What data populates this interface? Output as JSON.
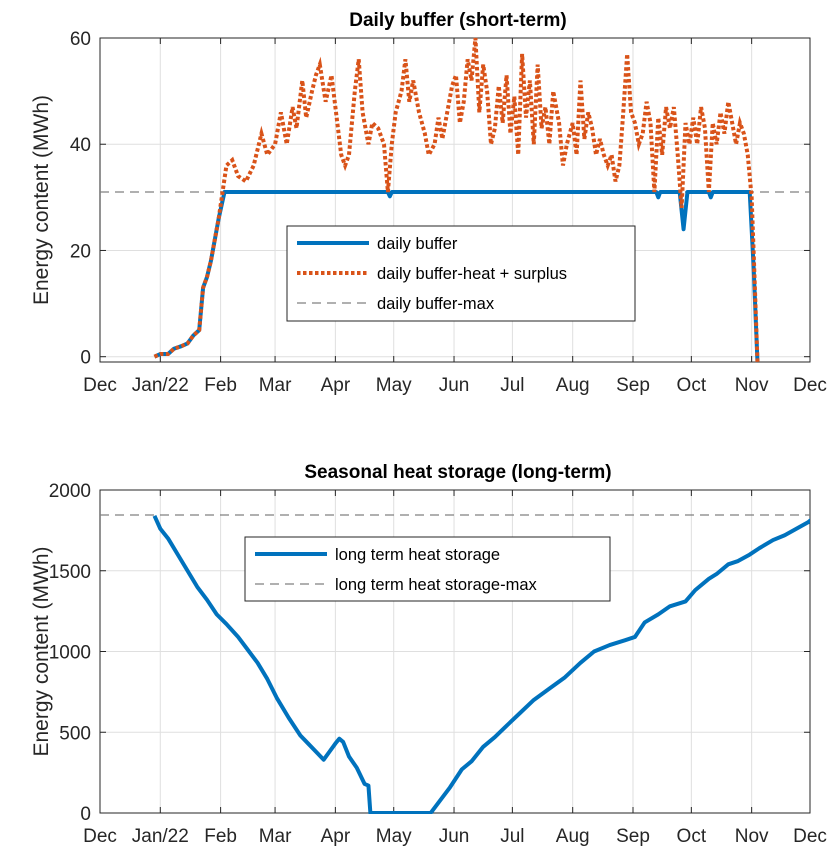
{
  "chart_data": [
    {
      "type": "line",
      "title": "Daily buffer (short-term)",
      "xlabel": "",
      "ylabel": "Energy content (MWh)",
      "x_tick_labels": [
        "Dec",
        "Jan/22",
        "Feb",
        "Mar",
        "Apr",
        "May",
        "Jun",
        "Jul",
        "Aug",
        "Sep",
        "Oct",
        "Nov",
        "Dec"
      ],
      "y_ticks": [
        0,
        20,
        40,
        60
      ],
      "ylim": [
        -1,
        60
      ],
      "grid": true,
      "legend": "center",
      "series": [
        {
          "name": "daily buffer",
          "color": "#0072BD",
          "style": "solid",
          "points": [
            [
              "2021-12-29",
              0
            ],
            [
              "2022-01-01",
              0.5
            ],
            [
              "2022-01-05",
              0.5
            ],
            [
              "2022-01-08",
              1.5
            ],
            [
              "2022-01-12",
              2
            ],
            [
              "2022-01-15",
              2.5
            ],
            [
              "2022-01-18",
              4
            ],
            [
              "2022-01-21",
              5
            ],
            [
              "2022-01-23",
              13
            ],
            [
              "2022-01-25",
              15
            ],
            [
              "2022-01-27",
              18
            ],
            [
              "2022-01-29",
              22
            ],
            [
              "2022-01-31",
              26
            ],
            [
              "2022-02-03",
              31
            ],
            [
              "2022-04-28",
              31
            ],
            [
              "2022-04-29",
              30.2
            ],
            [
              "2022-04-30",
              31
            ],
            [
              "2022-09-13",
              31
            ],
            [
              "2022-09-14",
              30
            ],
            [
              "2022-09-15",
              31
            ],
            [
              "2022-09-25",
              31
            ],
            [
              "2022-09-27",
              24
            ],
            [
              "2022-09-29",
              31
            ],
            [
              "2022-10-10",
              31
            ],
            [
              "2022-10-11",
              30
            ],
            [
              "2022-10-12",
              31
            ],
            [
              "2022-10-31",
              31
            ],
            [
              "2022-11-02",
              17
            ],
            [
              "2022-11-04",
              -1
            ]
          ]
        },
        {
          "name": "daily buffer-heat + surplus",
          "color": "#D95319",
          "style": "dotted",
          "points": [
            [
              "2021-12-29",
              0
            ],
            [
              "2022-01-01",
              0.5
            ],
            [
              "2022-01-05",
              0.5
            ],
            [
              "2022-01-08",
              1.5
            ],
            [
              "2022-01-12",
              2
            ],
            [
              "2022-01-15",
              2.5
            ],
            [
              "2022-01-18",
              4
            ],
            [
              "2022-01-21",
              5
            ],
            [
              "2022-01-23",
              13
            ],
            [
              "2022-01-25",
              15
            ],
            [
              "2022-01-27",
              18
            ],
            [
              "2022-01-29",
              22
            ],
            [
              "2022-01-31",
              26
            ],
            [
              "2022-02-02",
              31
            ],
            [
              "2022-02-04",
              36
            ],
            [
              "2022-02-07",
              37
            ],
            [
              "2022-02-10",
              34
            ],
            [
              "2022-02-14",
              33
            ],
            [
              "2022-02-18",
              36
            ],
            [
              "2022-02-22",
              42
            ],
            [
              "2022-02-25",
              38
            ],
            [
              "2022-03-01",
              40
            ],
            [
              "2022-03-04",
              46
            ],
            [
              "2022-03-07",
              40
            ],
            [
              "2022-03-10",
              47
            ],
            [
              "2022-03-12",
              43
            ],
            [
              "2022-03-15",
              52
            ],
            [
              "2022-03-17",
              45
            ],
            [
              "2022-03-20",
              50
            ],
            [
              "2022-03-22",
              53
            ],
            [
              "2022-03-24",
              55
            ],
            [
              "2022-03-27",
              48
            ],
            [
              "2022-03-30",
              53
            ],
            [
              "2022-04-02",
              44
            ],
            [
              "2022-04-04",
              38
            ],
            [
              "2022-04-06",
              36
            ],
            [
              "2022-04-08",
              38
            ],
            [
              "2022-04-11",
              50
            ],
            [
              "2022-04-13",
              56
            ],
            [
              "2022-04-15",
              46
            ],
            [
              "2022-04-18",
              40
            ],
            [
              "2022-04-20",
              44
            ],
            [
              "2022-04-23",
              43
            ],
            [
              "2022-04-26",
              40
            ],
            [
              "2022-04-28",
              31
            ],
            [
              "2022-04-30",
              40
            ],
            [
              "2022-05-02",
              46
            ],
            [
              "2022-05-05",
              50
            ],
            [
              "2022-05-07",
              56
            ],
            [
              "2022-05-09",
              48
            ],
            [
              "2022-05-11",
              52
            ],
            [
              "2022-05-14",
              46
            ],
            [
              "2022-05-17",
              42
            ],
            [
              "2022-05-19",
              38
            ],
            [
              "2022-05-22",
              40
            ],
            [
              "2022-05-24",
              45
            ],
            [
              "2022-05-26",
              41
            ],
            [
              "2022-05-29",
              47
            ],
            [
              "2022-05-31",
              51
            ],
            [
              "2022-06-02",
              53
            ],
            [
              "2022-06-04",
              44
            ],
            [
              "2022-06-06",
              48
            ],
            [
              "2022-06-08",
              56
            ],
            [
              "2022-06-10",
              52
            ],
            [
              "2022-06-12",
              60
            ],
            [
              "2022-06-14",
              46
            ],
            [
              "2022-06-16",
              55
            ],
            [
              "2022-06-18",
              50
            ],
            [
              "2022-06-20",
              40
            ],
            [
              "2022-06-22",
              43
            ],
            [
              "2022-06-24",
              51
            ],
            [
              "2022-06-26",
              44
            ],
            [
              "2022-06-28",
              53
            ],
            [
              "2022-06-30",
              42
            ],
            [
              "2022-07-02",
              49
            ],
            [
              "2022-07-04",
              38
            ],
            [
              "2022-07-06",
              57
            ],
            [
              "2022-07-08",
              45
            ],
            [
              "2022-07-10",
              52
            ],
            [
              "2022-07-12",
              40
            ],
            [
              "2022-07-14",
              55
            ],
            [
              "2022-07-16",
              43
            ],
            [
              "2022-07-18",
              47
            ],
            [
              "2022-07-20",
              40
            ],
            [
              "2022-07-22",
              50
            ],
            [
              "2022-07-25",
              44
            ],
            [
              "2022-07-27",
              36
            ],
            [
              "2022-07-29",
              40
            ],
            [
              "2022-08-01",
              44
            ],
            [
              "2022-08-03",
              38
            ],
            [
              "2022-08-05",
              52
            ],
            [
              "2022-08-07",
              41
            ],
            [
              "2022-08-09",
              46
            ],
            [
              "2022-08-11",
              43
            ],
            [
              "2022-08-13",
              38
            ],
            [
              "2022-08-15",
              41
            ],
            [
              "2022-08-17",
              38
            ],
            [
              "2022-08-19",
              36
            ],
            [
              "2022-08-21",
              38
            ],
            [
              "2022-08-23",
              33
            ],
            [
              "2022-08-25",
              36
            ],
            [
              "2022-08-27",
              46
            ],
            [
              "2022-08-29",
              57
            ],
            [
              "2022-08-31",
              46
            ],
            [
              "2022-09-02",
              44
            ],
            [
              "2022-09-04",
              40
            ],
            [
              "2022-09-06",
              42
            ],
            [
              "2022-09-08",
              48
            ],
            [
              "2022-09-10",
              44
            ],
            [
              "2022-09-12",
              31
            ],
            [
              "2022-09-14",
              45
            ],
            [
              "2022-09-16",
              38
            ],
            [
              "2022-09-18",
              47
            ],
            [
              "2022-09-20",
              43
            ],
            [
              "2022-09-22",
              47
            ],
            [
              "2022-09-24",
              38
            ],
            [
              "2022-09-26",
              28
            ],
            [
              "2022-09-28",
              44
            ],
            [
              "2022-09-30",
              40
            ],
            [
              "2022-10-02",
              45
            ],
            [
              "2022-10-04",
              40
            ],
            [
              "2022-10-06",
              47
            ],
            [
              "2022-10-08",
              43
            ],
            [
              "2022-10-10",
              31
            ],
            [
              "2022-10-12",
              44
            ],
            [
              "2022-10-14",
              40
            ],
            [
              "2022-10-16",
              46
            ],
            [
              "2022-10-18",
              42
            ],
            [
              "2022-10-20",
              48
            ],
            [
              "2022-10-22",
              44
            ],
            [
              "2022-10-24",
              40
            ],
            [
              "2022-10-26",
              44
            ],
            [
              "2022-10-28",
              42
            ],
            [
              "2022-10-30",
              38
            ],
            [
              "2022-11-01",
              30
            ],
            [
              "2022-11-02",
              20
            ],
            [
              "2022-11-04",
              -1
            ]
          ]
        },
        {
          "name": "daily buffer-max",
          "color": "#808080",
          "style": "dashed",
          "constant": 31
        }
      ]
    },
    {
      "type": "line",
      "title": "Seasonal heat storage (long-term)",
      "xlabel": "",
      "ylabel": "Energy content (MWh)",
      "x_tick_labels": [
        "Dec",
        "Jan/22",
        "Feb",
        "Mar",
        "Apr",
        "May",
        "Jun",
        "Jul",
        "Aug",
        "Sep",
        "Oct",
        "Nov",
        "Dec"
      ],
      "y_ticks": [
        0,
        500,
        1000,
        1500,
        2000
      ],
      "ylim": [
        0,
        2000
      ],
      "grid": true,
      "legend": "top-center",
      "series": [
        {
          "name": "long term heat storage",
          "color": "#0072BD",
          "style": "solid",
          "points": [
            [
              "2021-12-29",
              1840
            ],
            [
              "2022-01-01",
              1760
            ],
            [
              "2022-01-05",
              1700
            ],
            [
              "2022-01-10",
              1600
            ],
            [
              "2022-01-15",
              1500
            ],
            [
              "2022-01-20",
              1400
            ],
            [
              "2022-01-25",
              1320
            ],
            [
              "2022-01-30",
              1230
            ],
            [
              "2022-02-04",
              1170
            ],
            [
              "2022-02-10",
              1090
            ],
            [
              "2022-02-15",
              1010
            ],
            [
              "2022-02-20",
              930
            ],
            [
              "2022-02-25",
              830
            ],
            [
              "2022-03-02",
              710
            ],
            [
              "2022-03-08",
              590
            ],
            [
              "2022-03-14",
              480
            ],
            [
              "2022-03-18",
              430
            ],
            [
              "2022-03-22",
              380
            ],
            [
              "2022-03-26",
              330
            ],
            [
              "2022-03-29",
              380
            ],
            [
              "2022-04-01",
              430
            ],
            [
              "2022-04-03",
              460
            ],
            [
              "2022-04-05",
              440
            ],
            [
              "2022-04-08",
              350
            ],
            [
              "2022-04-12",
              280
            ],
            [
              "2022-04-16",
              180
            ],
            [
              "2022-04-18",
              170
            ],
            [
              "2022-04-19",
              0
            ],
            [
              "2022-05-20",
              0
            ],
            [
              "2022-05-25",
              80
            ],
            [
              "2022-05-30",
              160
            ],
            [
              "2022-06-05",
              270
            ],
            [
              "2022-06-10",
              320
            ],
            [
              "2022-06-16",
              410
            ],
            [
              "2022-06-22",
              470
            ],
            [
              "2022-06-28",
              540
            ],
            [
              "2022-07-05",
              620
            ],
            [
              "2022-07-12",
              700
            ],
            [
              "2022-07-20",
              770
            ],
            [
              "2022-07-28",
              840
            ],
            [
              "2022-08-05",
              930
            ],
            [
              "2022-08-12",
              1000
            ],
            [
              "2022-08-20",
              1040
            ],
            [
              "2022-08-28",
              1070
            ],
            [
              "2022-09-02",
              1090
            ],
            [
              "2022-09-07",
              1180
            ],
            [
              "2022-09-14",
              1230
            ],
            [
              "2022-09-20",
              1280
            ],
            [
              "2022-09-28",
              1310
            ],
            [
              "2022-10-03",
              1380
            ],
            [
              "2022-10-10",
              1450
            ],
            [
              "2022-10-14",
              1480
            ],
            [
              "2022-10-20",
              1540
            ],
            [
              "2022-10-25",
              1560
            ],
            [
              "2022-10-31",
              1600
            ],
            [
              "2022-11-05",
              1640
            ],
            [
              "2022-11-12",
              1690
            ],
            [
              "2022-11-18",
              1720
            ],
            [
              "2022-11-24",
              1760
            ],
            [
              "2022-11-30",
              1800
            ],
            [
              "2022-12-04",
              1840
            ],
            [
              "2022-12-12",
              1840
            ]
          ]
        },
        {
          "name": "long term heat storage-max",
          "color": "#808080",
          "style": "dashed",
          "constant": 1845
        }
      ]
    }
  ]
}
